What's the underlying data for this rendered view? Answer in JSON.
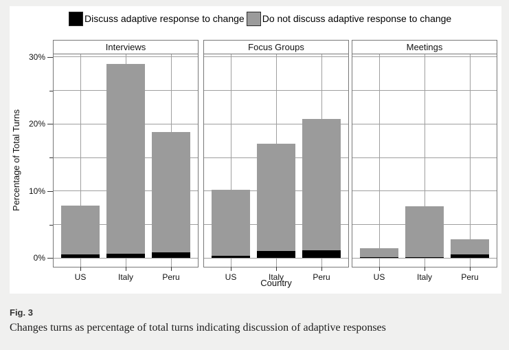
{
  "figure": {
    "caption_label": "Fig. 3",
    "caption_text": "Changes turns as percentage of total turns indicating discussion of adaptive responses"
  },
  "chart_data": {
    "type": "bar",
    "stacked": true,
    "faceted": true,
    "xlabel": "Country",
    "ylabel": "Percentage of Total Turns",
    "categories": [
      "US",
      "Italy",
      "Peru"
    ],
    "ylim": [
      0,
      30
    ],
    "yticks": [
      {
        "value": 0,
        "label": "0%"
      },
      {
        "value": 10,
        "label": "10%"
      },
      {
        "value": 20,
        "label": "20%"
      },
      {
        "value": 30,
        "label": "30%"
      }
    ],
    "minor_ticks": [
      5,
      15,
      25
    ],
    "grid": true,
    "legend_position": "top",
    "legend": [
      {
        "label": "Discuss adaptive response to change",
        "color": "#000000"
      },
      {
        "label": "Do not discuss adaptive response to change",
        "color": "#9b9b9b"
      }
    ],
    "panels": [
      {
        "title": "Interviews",
        "series": [
          {
            "name": "Discuss adaptive response to change",
            "values": [
              0.5,
              0.6,
              0.9
            ]
          },
          {
            "name": "Do not discuss adaptive response to change",
            "values": [
              7.3,
              28.4,
              17.9
            ]
          }
        ]
      },
      {
        "title": "Focus Groups",
        "series": [
          {
            "name": "Discuss adaptive response to change",
            "values": [
              0.3,
              1.1,
              1.2
            ]
          },
          {
            "name": "Do not discuss adaptive response to change",
            "values": [
              9.9,
              16.0,
              19.6
            ]
          }
        ]
      },
      {
        "title": "Meetings",
        "series": [
          {
            "name": "Discuss adaptive response to change",
            "values": [
              0.1,
              0.1,
              0.5
            ]
          },
          {
            "name": "Do not discuss adaptive response to change",
            "values": [
              1.4,
              7.6,
              2.3
            ]
          }
        ]
      }
    ]
  }
}
